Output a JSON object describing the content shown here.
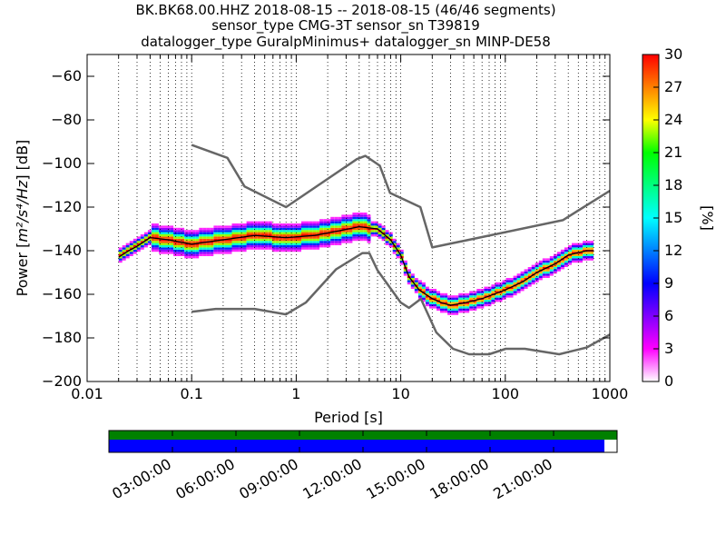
{
  "title_lines": [
    "BK.BK68.00.HHZ   2018-08-15 -- 2018-08-15  (46/46 segments)",
    "sensor_type CMG-3T sensor_sn T39819",
    "datalogger_type GuralpMinimus+ datalogger_sn MINP-DE58"
  ],
  "chart_data": [
    {
      "type": "heatmap",
      "subtype": "probabilistic-power-spectral-density",
      "xlabel": "Period [s]",
      "ylabel_prefix": "Power [",
      "ylabel_units": "m²/s⁴/Hz",
      "ylabel_suffix": "] [dB]",
      "xscale": "log",
      "xlim": [
        0.01,
        1000
      ],
      "ylim": [
        -200,
        -50
      ],
      "x_ticks": [
        0.01,
        0.1,
        1,
        10,
        100,
        1000
      ],
      "x_tick_labels": [
        "0.01",
        "0.1",
        "1",
        "10",
        "100",
        "1000"
      ],
      "y_ticks": [
        -200,
        -180,
        -160,
        -140,
        -120,
        -100,
        -80,
        -60
      ],
      "y_tick_labels": [
        "−200",
        "−180",
        "−160",
        "−140",
        "−120",
        "−100",
        "−80",
        "−60"
      ],
      "grid": "dotted, at every period decade subdivision",
      "colorbar": {
        "label": "[%]",
        "range": [
          0,
          30
        ],
        "ticks": [
          0,
          3,
          6,
          9,
          12,
          15,
          18,
          21,
          24,
          27,
          30
        ],
        "tick_labels": [
          "0",
          "3",
          "6",
          "9",
          "12",
          "15",
          "18",
          "21",
          "24",
          "27",
          "30"
        ],
        "colors": [
          "#ffffff",
          "#ff00ff",
          "#8000ff",
          "#0000ff",
          "#0080ff",
          "#00ffff",
          "#00ff80",
          "#00ff00",
          "#ffff00",
          "#ff8000",
          "#ff0000"
        ]
      },
      "series": [
        {
          "role": "new-high-noise-model",
          "color": "#666666",
          "x": [
            0.1,
            0.22,
            0.32,
            0.8,
            3.8,
            4.6,
            6.3,
            7.9,
            15.4,
            20,
            354.8,
            1000
          ],
          "y": [
            -91.5,
            -97.4,
            -110.5,
            -120,
            -98,
            -96.5,
            -101,
            -113.5,
            -120,
            -138.5,
            -126,
            -112.5
          ]
        },
        {
          "role": "new-low-noise-model",
          "color": "#666666",
          "x": [
            0.1,
            0.17,
            0.4,
            0.8,
            1.24,
            2.4,
            4.3,
            5,
            6,
            10,
            12,
            15.6,
            21.9,
            31.6,
            45,
            70,
            101,
            154,
            328,
            600,
            1000
          ],
          "y": [
            -168,
            -166.7,
            -166.7,
            -169.2,
            -163.7,
            -148.6,
            -141.1,
            -141.1,
            -149,
            -163.8,
            -166.2,
            -162.1,
            -177.5,
            -185,
            -187.5,
            -187.5,
            -185,
            -185,
            -187.5,
            -184.4,
            -178.5
          ]
        },
        {
          "role": "mode",
          "color": "#000000",
          "x": [
            0.02,
            0.025,
            0.03,
            0.04,
            0.06,
            0.1,
            0.2,
            0.4,
            0.8,
            1.5,
            2.5,
            4,
            6,
            8,
            10,
            12,
            15,
            20,
            25,
            30,
            40,
            60,
            100,
            150,
            200,
            300,
            400,
            600,
            700
          ],
          "y": [
            -143,
            -140,
            -138,
            -134,
            -135,
            -137,
            -135,
            -133,
            -134,
            -133,
            -131,
            -129,
            -130,
            -135,
            -142,
            -152,
            -158,
            -162,
            -164,
            -165,
            -164,
            -162,
            -158,
            -154,
            -150,
            -146,
            -142,
            -140,
            -140
          ]
        }
      ]
    },
    {
      "type": "timeline",
      "x_tick_labels": [
        "03:00:00",
        "06:00:00",
        "09:00:00",
        "12:00:00",
        "15:00:00",
        "18:00:00",
        "21:00:00"
      ],
      "x_ticks_hours": [
        3,
        6,
        9,
        12,
        15,
        18,
        21
      ],
      "xlim_hours": [
        0,
        24
      ],
      "bars": [
        {
          "role": "data-available",
          "color": "#008000",
          "start": 0,
          "end": 24
        },
        {
          "role": "segments-used",
          "color": "#0000ff",
          "start": 0,
          "end": 23.4
        }
      ]
    }
  ]
}
